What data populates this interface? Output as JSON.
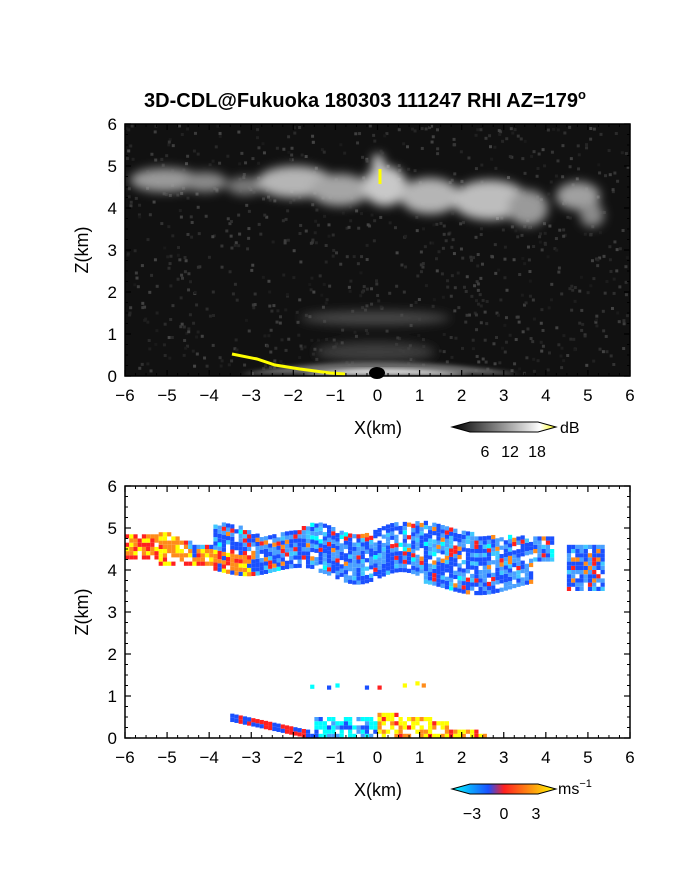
{
  "title": {
    "text": "3D-CDL@Fukuoka 180303 111247 RHI AZ=179",
    "superscript": "o"
  },
  "chart_data": [
    {
      "type": "heatmap",
      "quantity": "backscatter intensity",
      "xlabel": "X(km)",
      "ylabel": "Z(km)",
      "xlim": [
        -6,
        6
      ],
      "ylim": [
        0,
        6
      ],
      "xticks": [
        "−6",
        "−5",
        "−4",
        "−3",
        "−2",
        "−1",
        "0",
        "1",
        "2",
        "3",
        "4",
        "5",
        "6"
      ],
      "yticks": [
        "0",
        "1",
        "2",
        "3",
        "4",
        "5",
        "6"
      ],
      "background_color": "#111111",
      "features": [
        {
          "kind": "cloud-layer",
          "x_range": [
            -6,
            5.3
          ],
          "z_range": [
            3.5,
            5.3
          ]
        },
        {
          "kind": "near-ground-echo",
          "x_range": [
            -3.5,
            3.5
          ],
          "z_range": [
            0,
            0.6
          ]
        },
        {
          "kind": "yellow-saturated-trace",
          "points": [
            [
              -3.5,
              0.52
            ],
            [
              -3.0,
              0.42
            ],
            [
              -2.0,
              0.2
            ],
            [
              -1.0,
              0.05
            ]
          ]
        },
        {
          "kind": "yellow-saturated-trace",
          "points": [
            [
              0.1,
              4.75
            ],
            [
              0.1,
              5.05
            ]
          ]
        }
      ],
      "colorbar": {
        "unit": "dB",
        "ticks": [
          "6",
          "12",
          "18"
        ],
        "colors": [
          "#000000",
          "#ffffff",
          "#ffff00"
        ]
      }
    },
    {
      "type": "heatmap",
      "quantity": "Doppler velocity",
      "xlabel": "X(km)",
      "ylabel": "Z(km)",
      "xlim": [
        -6,
        6
      ],
      "ylim": [
        0,
        6
      ],
      "xticks": [
        "−6",
        "−5",
        "−4",
        "−3",
        "−2",
        "−1",
        "0",
        "1",
        "2",
        "3",
        "4",
        "5",
        "6"
      ],
      "yticks": [
        "0",
        "1",
        "2",
        "3",
        "4",
        "5",
        "6"
      ],
      "background_color": "#ffffff",
      "features": [
        {
          "kind": "cloud-layer",
          "x_range": [
            -6,
            5.3
          ],
          "z_range": [
            3.3,
            5.3
          ],
          "dominant_sign": "negative"
        },
        {
          "kind": "cloud-left-positive",
          "x_range": [
            -6,
            -3
          ],
          "z_range": [
            4.0,
            4.8
          ],
          "dominant_sign": "positive"
        },
        {
          "kind": "near-ground-positive",
          "x_range": [
            0,
            2.6
          ],
          "z_range": [
            0,
            0.5
          ]
        },
        {
          "kind": "near-ground-negative",
          "x_range": [
            -1.5,
            0
          ],
          "z_range": [
            0,
            0.5
          ]
        }
      ],
      "colorbar": {
        "unit": "ms",
        "unit_superscript": "−1",
        "ticks": [
          "−3",
          "0",
          "3"
        ],
        "colors": [
          "#00ffff",
          "#1a50ff",
          "#ff2020",
          "#ffff00"
        ]
      }
    }
  ]
}
